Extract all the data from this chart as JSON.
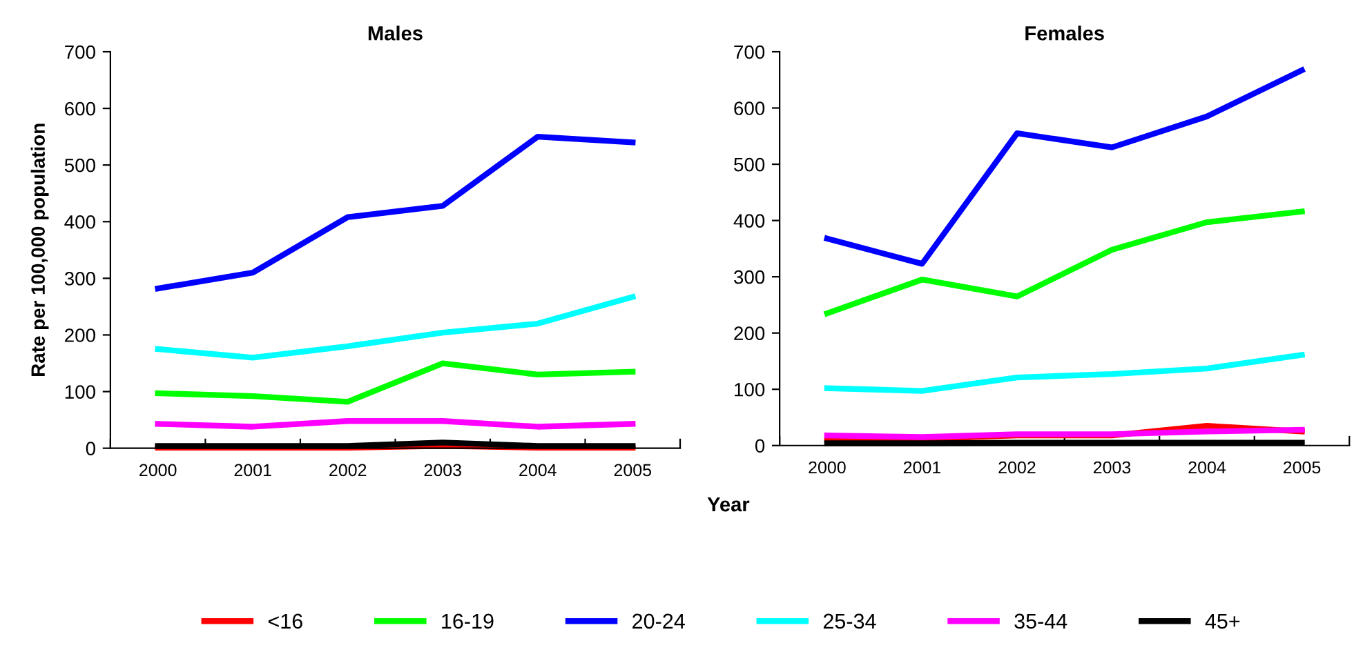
{
  "chart_data": [
    {
      "type": "line",
      "title": "Males",
      "ylabel": "Rate per 100,000 population",
      "categories": [
        "2000",
        "2001",
        "2002",
        "2003",
        "2004",
        "2005"
      ],
      "ylim": [
        0,
        700
      ],
      "yticks": [
        0,
        100,
        200,
        300,
        400,
        500,
        600,
        700
      ],
      "grid": false,
      "legend": "bottom",
      "marker": "none",
      "line_style": "solid",
      "series": [
        {
          "name": "<16",
          "color": "#ff0000",
          "values": [
            1,
            1,
            1,
            4,
            1,
            1
          ]
        },
        {
          "name": "16-19",
          "color": "#00ff00",
          "values": [
            97,
            92,
            82,
            150,
            130,
            135
          ]
        },
        {
          "name": "20-24",
          "color": "#0000ff",
          "values": [
            282,
            310,
            408,
            428,
            550,
            540
          ]
        },
        {
          "name": "25-34",
          "color": "#00ffff",
          "values": [
            175,
            160,
            180,
            204,
            220,
            267
          ]
        },
        {
          "name": "35-44",
          "color": "#ff00ff",
          "values": [
            43,
            38,
            48,
            48,
            38,
            43
          ]
        },
        {
          "name": "45+",
          "color": "#000000",
          "values": [
            4,
            4,
            4,
            10,
            4,
            4
          ]
        }
      ]
    },
    {
      "type": "line",
      "title": "Females",
      "xlabel": "Year",
      "categories": [
        "2000",
        "2001",
        "2002",
        "2003",
        "2004",
        "2005"
      ],
      "ylim": [
        0,
        700
      ],
      "yticks": [
        0,
        100,
        200,
        300,
        400,
        500,
        600,
        700
      ],
      "grid": false,
      "marker": "none",
      "line_style": "solid",
      "series": [
        {
          "color": "#ff0000",
          "values": [
            10,
            12,
            18,
            18,
            35,
            25
          ]
        },
        {
          "color": "#00ff00",
          "values": [
            235,
            295,
            265,
            348,
            397,
            416
          ]
        },
        {
          "color": "#0000ff",
          "values": [
            368,
            323,
            555,
            530,
            585,
            667
          ]
        },
        {
          "color": "#00ffff",
          "values": [
            102,
            97,
            121,
            127,
            137,
            161
          ]
        },
        {
          "color": "#ff00ff",
          "values": [
            18,
            15,
            20,
            20,
            25,
            28
          ]
        },
        {
          "color": "#000000",
          "values": [
            4,
            4,
            5,
            5,
            5,
            5
          ]
        }
      ]
    }
  ]
}
